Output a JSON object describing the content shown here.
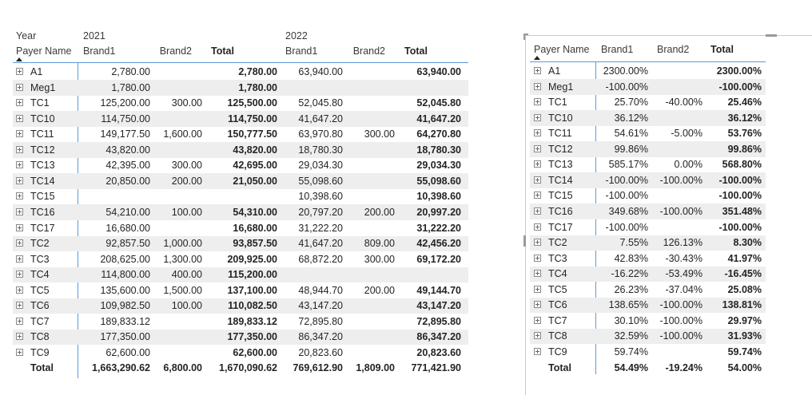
{
  "left_table": {
    "year_label": "Year",
    "payer_label": "Payer Name",
    "year_2021": "2021",
    "year_2022": "2022",
    "col_brand1": "Brand1",
    "col_brand2": "Brand2",
    "col_total": "Total",
    "rows": [
      {
        "name": "A1",
        "b1_2021": "2,780.00",
        "b2_2021": "",
        "t_2021": "2,780.00",
        "b1_2022": "63,940.00",
        "b2_2022": "",
        "t_2022": "63,940.00"
      },
      {
        "name": "Meg1",
        "b1_2021": "1,780.00",
        "b2_2021": "",
        "t_2021": "1,780.00",
        "b1_2022": "",
        "b2_2022": "",
        "t_2022": ""
      },
      {
        "name": "TC1",
        "b1_2021": "125,200.00",
        "b2_2021": "300.00",
        "t_2021": "125,500.00",
        "b1_2022": "52,045.80",
        "b2_2022": "",
        "t_2022": "52,045.80"
      },
      {
        "name": "TC10",
        "b1_2021": "114,750.00",
        "b2_2021": "",
        "t_2021": "114,750.00",
        "b1_2022": "41,647.20",
        "b2_2022": "",
        "t_2022": "41,647.20"
      },
      {
        "name": "TC11",
        "b1_2021": "149,177.50",
        "b2_2021": "1,600.00",
        "t_2021": "150,777.50",
        "b1_2022": "63,970.80",
        "b2_2022": "300.00",
        "t_2022": "64,270.80"
      },
      {
        "name": "TC12",
        "b1_2021": "43,820.00",
        "b2_2021": "",
        "t_2021": "43,820.00",
        "b1_2022": "18,780.30",
        "b2_2022": "",
        "t_2022": "18,780.30"
      },
      {
        "name": "TC13",
        "b1_2021": "42,395.00",
        "b2_2021": "300.00",
        "t_2021": "42,695.00",
        "b1_2022": "29,034.30",
        "b2_2022": "",
        "t_2022": "29,034.30"
      },
      {
        "name": "TC14",
        "b1_2021": "20,850.00",
        "b2_2021": "200.00",
        "t_2021": "21,050.00",
        "b1_2022": "55,098.60",
        "b2_2022": "",
        "t_2022": "55,098.60"
      },
      {
        "name": "TC15",
        "b1_2021": "",
        "b2_2021": "",
        "t_2021": "",
        "b1_2022": "10,398.60",
        "b2_2022": "",
        "t_2022": "10,398.60"
      },
      {
        "name": "TC16",
        "b1_2021": "54,210.00",
        "b2_2021": "100.00",
        "t_2021": "54,310.00",
        "b1_2022": "20,797.20",
        "b2_2022": "200.00",
        "t_2022": "20,997.20"
      },
      {
        "name": "TC17",
        "b1_2021": "16,680.00",
        "b2_2021": "",
        "t_2021": "16,680.00",
        "b1_2022": "31,222.20",
        "b2_2022": "",
        "t_2022": "31,222.20"
      },
      {
        "name": "TC2",
        "b1_2021": "92,857.50",
        "b2_2021": "1,000.00",
        "t_2021": "93,857.50",
        "b1_2022": "41,647.20",
        "b2_2022": "809.00",
        "t_2022": "42,456.20"
      },
      {
        "name": "TC3",
        "b1_2021": "208,625.00",
        "b2_2021": "1,300.00",
        "t_2021": "209,925.00",
        "b1_2022": "68,872.20",
        "b2_2022": "300.00",
        "t_2022": "69,172.20"
      },
      {
        "name": "TC4",
        "b1_2021": "114,800.00",
        "b2_2021": "400.00",
        "t_2021": "115,200.00",
        "b1_2022": "",
        "b2_2022": "",
        "t_2022": ""
      },
      {
        "name": "TC5",
        "b1_2021": "135,600.00",
        "b2_2021": "1,500.00",
        "t_2021": "137,100.00",
        "b1_2022": "48,944.70",
        "b2_2022": "200.00",
        "t_2022": "49,144.70"
      },
      {
        "name": "TC6",
        "b1_2021": "109,982.50",
        "b2_2021": "100.00",
        "t_2021": "110,082.50",
        "b1_2022": "43,147.20",
        "b2_2022": "",
        "t_2022": "43,147.20"
      },
      {
        "name": "TC7",
        "b1_2021": "189,833.12",
        "b2_2021": "",
        "t_2021": "189,833.12",
        "b1_2022": "72,895.80",
        "b2_2022": "",
        "t_2022": "72,895.80"
      },
      {
        "name": "TC8",
        "b1_2021": "177,350.00",
        "b2_2021": "",
        "t_2021": "177,350.00",
        "b1_2022": "86,347.20",
        "b2_2022": "",
        "t_2022": "86,347.20"
      },
      {
        "name": "TC9",
        "b1_2021": "62,600.00",
        "b2_2021": "",
        "t_2021": "62,600.00",
        "b1_2022": "20,823.60",
        "b2_2022": "",
        "t_2022": "20,823.60"
      }
    ],
    "total_row": {
      "name": "Total",
      "b1_2021": "1,663,290.62",
      "b2_2021": "6,800.00",
      "t_2021": "1,670,090.62",
      "b1_2022": "769,612.90",
      "b2_2022": "1,809.00",
      "t_2022": "771,421.90"
    }
  },
  "right_table": {
    "payer_label": "Payer Name",
    "col_brand1": "Brand1",
    "col_brand2": "Brand2",
    "col_total": "Total",
    "rows": [
      {
        "name": "A1",
        "b1": "2300.00%",
        "b2": "",
        "t": "2300.00%"
      },
      {
        "name": "Meg1",
        "b1": "-100.00%",
        "b2": "",
        "t": "-100.00%"
      },
      {
        "name": "TC1",
        "b1": "25.70%",
        "b2": "-40.00%",
        "t": "25.46%"
      },
      {
        "name": "TC10",
        "b1": "36.12%",
        "b2": "",
        "t": "36.12%"
      },
      {
        "name": "TC11",
        "b1": "54.61%",
        "b2": "-5.00%",
        "t": "53.76%"
      },
      {
        "name": "TC12",
        "b1": "99.86%",
        "b2": "",
        "t": "99.86%"
      },
      {
        "name": "TC13",
        "b1": "585.17%",
        "b2": "0.00%",
        "t": "568.80%"
      },
      {
        "name": "TC14",
        "b1": "-100.00%",
        "b2": "-100.00%",
        "t": "-100.00%"
      },
      {
        "name": "TC15",
        "b1": "-100.00%",
        "b2": "",
        "t": "-100.00%"
      },
      {
        "name": "TC16",
        "b1": "349.68%",
        "b2": "-100.00%",
        "t": "351.48%"
      },
      {
        "name": "TC17",
        "b1": "-100.00%",
        "b2": "",
        "t": "-100.00%"
      },
      {
        "name": "TC2",
        "b1": "7.55%",
        "b2": "126.13%",
        "t": "8.30%"
      },
      {
        "name": "TC3",
        "b1": "42.83%",
        "b2": "-30.43%",
        "t": "41.97%"
      },
      {
        "name": "TC4",
        "b1": "-16.22%",
        "b2": "-53.49%",
        "t": "-16.45%"
      },
      {
        "name": "TC5",
        "b1": "26.23%",
        "b2": "-37.04%",
        "t": "25.08%"
      },
      {
        "name": "TC6",
        "b1": "138.65%",
        "b2": "-100.00%",
        "t": "138.81%"
      },
      {
        "name": "TC7",
        "b1": "30.10%",
        "b2": "-100.00%",
        "t": "29.97%"
      },
      {
        "name": "TC8",
        "b1": "32.59%",
        "b2": "-100.00%",
        "t": "31.93%"
      },
      {
        "name": "TC9",
        "b1": "59.74%",
        "b2": "",
        "t": "59.74%"
      }
    ],
    "total_row": {
      "name": "Total",
      "b1": "54.49%",
      "b2": "-19.24%",
      "t": "54.00%"
    }
  }
}
